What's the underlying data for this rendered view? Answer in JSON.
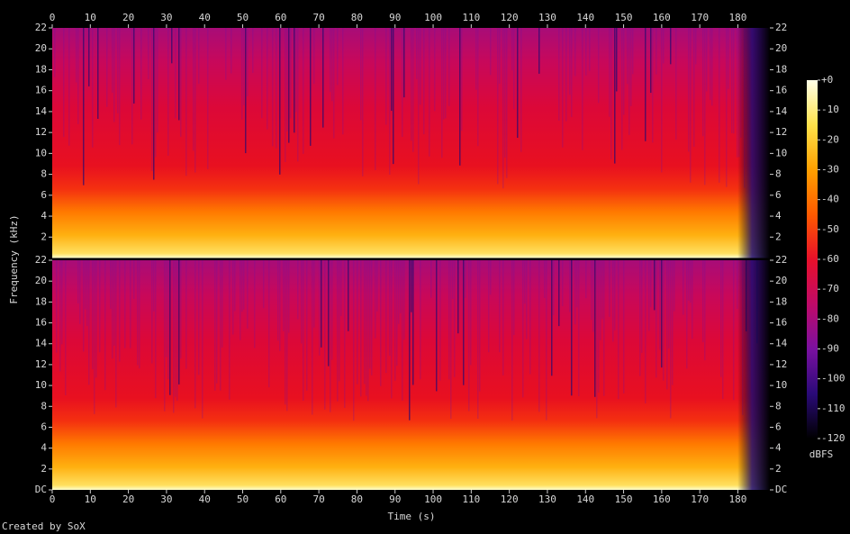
{
  "chart_data": {
    "type": "spectrogram",
    "x_label": "Time (s)",
    "y_label": "Frequency (kHz)",
    "xlim": [
      0,
      188.4
    ],
    "xticks": [
      0,
      10,
      20,
      30,
      40,
      50,
      60,
      70,
      80,
      90,
      100,
      110,
      120,
      130,
      140,
      150,
      160,
      170,
      180
    ],
    "ylim": [
      0,
      22
    ],
    "channels": [
      {
        "yticks": [
          2,
          4,
          6,
          8,
          10,
          12,
          14,
          16,
          18,
          20,
          22
        ]
      },
      {
        "yticks": [
          {
            "value": 0,
            "label": "DC"
          },
          2,
          4,
          6,
          8,
          10,
          12,
          14,
          16,
          18,
          20,
          22
        ]
      }
    ],
    "colorbar": {
      "label": "dBFS",
      "lim": [
        -120,
        0
      ],
      "ticks": [
        {
          "value": 0,
          "label": "+0"
        },
        -10,
        -20,
        -30,
        -40,
        -50,
        -60,
        -70,
        -80,
        -90,
        -100,
        -110,
        -120
      ],
      "colors": [
        "#ffffe8",
        "#ffe24a",
        "#ffa000",
        "#ff5a00",
        "#e8102a",
        "#c00a68",
        "#7a10a0",
        "#2a0a78",
        "#000000"
      ]
    },
    "credit": "Created by SoX"
  }
}
